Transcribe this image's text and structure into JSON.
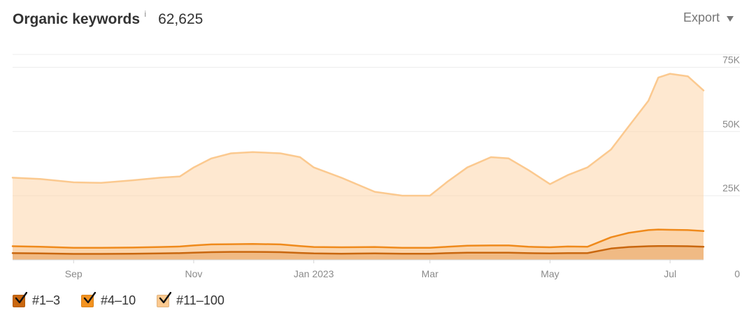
{
  "header": {
    "title": "Organic keywords",
    "info_icon": "i",
    "total": "62,625",
    "export_label": "Export",
    "export_icon": "caret-down-icon"
  },
  "legend": [
    {
      "label": "#1–3",
      "color": "#c9670f",
      "checked": true,
      "icon": "check-icon"
    },
    {
      "label": "#4–10",
      "color": "#f3921f",
      "checked": true,
      "icon": "check-icon"
    },
    {
      "label": "#11–100",
      "color": "#fbc98f",
      "checked": true,
      "icon": "check-icon"
    }
  ],
  "chart_data": {
    "type": "area",
    "stacked": false,
    "x_axis_labels": [
      "Sep",
      "Nov",
      "Jan 2023",
      "Mar",
      "May",
      "Jul"
    ],
    "y_axis_labels": [
      "0",
      "25K",
      "50K",
      "75K"
    ],
    "ylim": [
      0,
      80000
    ],
    "grid": true,
    "legend_position": "bottom-left",
    "x": [
      "2022-08-01",
      "2022-08-15",
      "2022-09-01",
      "2022-09-15",
      "2022-10-01",
      "2022-10-15",
      "2022-10-25",
      "2022-11-01",
      "2022-11-10",
      "2022-11-20",
      "2022-12-01",
      "2022-12-15",
      "2022-12-25",
      "2023-01-01",
      "2023-01-15",
      "2023-02-01",
      "2023-02-15",
      "2023-03-01",
      "2023-03-10",
      "2023-03-20",
      "2023-04-01",
      "2023-04-10",
      "2023-04-20",
      "2023-05-01",
      "2023-05-10",
      "2023-05-20",
      "2023-06-01",
      "2023-06-10",
      "2023-06-20",
      "2023-06-25",
      "2023-07-01",
      "2023-07-10",
      "2023-07-18"
    ],
    "series": [
      {
        "name": "#11–100",
        "values": [
          32000,
          31500,
          30200,
          30000,
          31000,
          32000,
          32500,
          36000,
          39500,
          41500,
          42000,
          41500,
          40000,
          36000,
          32000,
          26500,
          25000,
          25000,
          30500,
          36000,
          40000,
          39500,
          35000,
          29500,
          33000,
          36000,
          43000,
          52000,
          62000,
          71000,
          72500,
          71500,
          66000
        ]
      },
      {
        "name": "#4–10",
        "values": [
          5300,
          5100,
          4700,
          4700,
          4800,
          5000,
          5200,
          5600,
          6000,
          6100,
          6200,
          6000,
          5400,
          5000,
          4900,
          5000,
          4700,
          4700,
          5100,
          5500,
          5600,
          5600,
          5100,
          4900,
          5200,
          5100,
          8800,
          10500,
          11600,
          11800,
          11700,
          11600,
          11200
        ]
      },
      {
        "name": "#1–3",
        "values": [
          2600,
          2500,
          2300,
          2300,
          2400,
          2500,
          2600,
          2800,
          3000,
          3100,
          3100,
          3000,
          2700,
          2500,
          2400,
          2500,
          2400,
          2400,
          2600,
          2800,
          2800,
          2800,
          2600,
          2500,
          2600,
          2600,
          4400,
          5000,
          5300,
          5400,
          5400,
          5300,
          5100
        ]
      }
    ]
  }
}
